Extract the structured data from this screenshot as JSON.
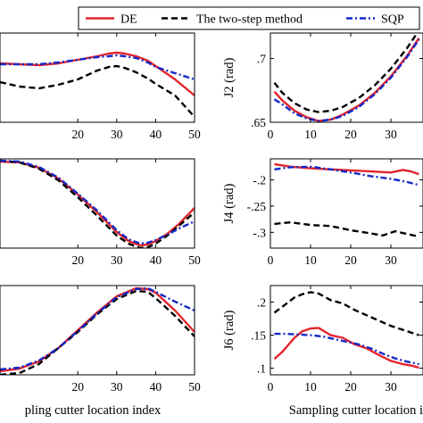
{
  "colors": {
    "DE": "#e3242b",
    "The two-step method": "#000000",
    "SQP": "#1428c8"
  },
  "legend": {
    "placement": "top-right",
    "items": [
      {
        "name": "DE",
        "style": "solid"
      },
      {
        "name": "The two-step method",
        "style": "dashed"
      },
      {
        "name": "SQP",
        "style": "dashdot"
      }
    ]
  },
  "chart_data": [
    {
      "id": "J1",
      "type": "line",
      "xlabel": "",
      "ylabel": "",
      "xlim": [
        0,
        50
      ],
      "ylim": [
        0.0,
        1.0
      ],
      "xticks": [
        20,
        30,
        40,
        50
      ],
      "yticks": [],
      "series": [
        {
          "name": "DE",
          "x": [
            0,
            5,
            10,
            15,
            20,
            25,
            28,
            30,
            32,
            35,
            38,
            40,
            45,
            50
          ],
          "y": [
            0.66,
            0.65,
            0.64,
            0.66,
            0.7,
            0.74,
            0.77,
            0.78,
            0.77,
            0.74,
            0.69,
            0.63,
            0.48,
            0.3
          ]
        },
        {
          "name": "The two-step method",
          "x": [
            0,
            5,
            10,
            15,
            20,
            25,
            28,
            30,
            32,
            35,
            38,
            40,
            45,
            50
          ],
          "y": [
            0.45,
            0.4,
            0.38,
            0.42,
            0.48,
            0.58,
            0.62,
            0.63,
            0.61,
            0.56,
            0.49,
            0.43,
            0.3,
            0.06
          ]
        },
        {
          "name": "SQP",
          "x": [
            0,
            5,
            10,
            15,
            20,
            25,
            28,
            30,
            32,
            35,
            38,
            40,
            45,
            50
          ],
          "y": [
            0.65,
            0.65,
            0.65,
            0.67,
            0.7,
            0.73,
            0.74,
            0.75,
            0.74,
            0.72,
            0.67,
            0.62,
            0.55,
            0.48
          ]
        }
      ]
    },
    {
      "id": "J2",
      "type": "line",
      "xlabel": "",
      "ylabel": "J2 (rad)",
      "xlim": [
        0,
        38
      ],
      "ylim": [
        0.65,
        0.72
      ],
      "xticks": [
        0,
        10,
        20,
        30
      ],
      "yticks": [
        0.65,
        0.7
      ],
      "series": [
        {
          "name": "DE",
          "x": [
            1,
            3,
            6,
            9,
            12,
            15,
            18,
            22,
            26,
            30,
            34,
            37
          ],
          "y": [
            0.674,
            0.667,
            0.659,
            0.654,
            0.651,
            0.652,
            0.656,
            0.663,
            0.673,
            0.686,
            0.702,
            0.716
          ]
        },
        {
          "name": "The two-step method",
          "x": [
            1,
            3,
            6,
            9,
            12,
            15,
            18,
            22,
            26,
            30,
            34,
            37
          ],
          "y": [
            0.681,
            0.673,
            0.665,
            0.66,
            0.658,
            0.659,
            0.662,
            0.669,
            0.679,
            0.692,
            0.708,
            0.722
          ]
        },
        {
          "name": "SQP",
          "x": [
            1,
            3,
            6,
            9,
            12,
            15,
            18,
            22,
            26,
            30,
            34,
            37
          ],
          "y": [
            0.668,
            0.664,
            0.657,
            0.653,
            0.651,
            0.652,
            0.655,
            0.662,
            0.672,
            0.685,
            0.701,
            0.715
          ]
        }
      ]
    },
    {
      "id": "J3",
      "type": "line",
      "xlabel": "",
      "ylabel": "",
      "xlim": [
        0,
        50
      ],
      "ylim": [
        0.0,
        1.0
      ],
      "xticks": [
        20,
        30,
        40,
        50
      ],
      "yticks": [],
      "series": [
        {
          "name": "DE",
          "x": [
            0,
            5,
            10,
            15,
            20,
            25,
            30,
            33,
            36,
            38,
            40,
            43,
            46,
            50
          ],
          "y": [
            0.97,
            0.96,
            0.9,
            0.78,
            0.6,
            0.4,
            0.18,
            0.08,
            0.03,
            0.04,
            0.08,
            0.16,
            0.27,
            0.45
          ]
        },
        {
          "name": "The two-step method",
          "x": [
            0,
            5,
            10,
            15,
            20,
            25,
            30,
            33,
            36,
            38,
            40,
            43,
            46,
            50
          ],
          "y": [
            0.98,
            0.96,
            0.89,
            0.76,
            0.57,
            0.36,
            0.14,
            0.05,
            0.0,
            0.01,
            0.05,
            0.14,
            0.25,
            0.4
          ]
        },
        {
          "name": "SQP",
          "x": [
            0,
            5,
            10,
            15,
            20,
            25,
            30,
            33,
            36,
            38,
            40,
            43,
            46,
            50
          ],
          "y": [
            0.98,
            0.97,
            0.91,
            0.79,
            0.61,
            0.42,
            0.2,
            0.1,
            0.05,
            0.06,
            0.09,
            0.15,
            0.22,
            0.3
          ]
        }
      ]
    },
    {
      "id": "J4",
      "type": "line",
      "xlabel": "",
      "ylabel": "J4 (rad)",
      "xlim": [
        0,
        38
      ],
      "ylim": [
        -0.33,
        -0.16
      ],
      "xticks": [
        0,
        10,
        20,
        30
      ],
      "yticks": [
        -0.2,
        -0.25,
        -0.3
      ],
      "series": [
        {
          "name": "DE",
          "x": [
            1,
            5,
            10,
            15,
            20,
            25,
            30,
            33,
            35,
            37
          ],
          "y": [
            -0.17,
            -0.175,
            -0.178,
            -0.18,
            -0.182,
            -0.184,
            -0.186,
            -0.181,
            -0.184,
            -0.189
          ]
        },
        {
          "name": "The two-step method",
          "x": [
            1,
            5,
            10,
            15,
            20,
            25,
            28,
            31,
            34,
            37
          ],
          "y": [
            -0.284,
            -0.281,
            -0.286,
            -0.288,
            -0.296,
            -0.302,
            -0.306,
            -0.298,
            -0.303,
            -0.308
          ]
        },
        {
          "name": "SQP",
          "x": [
            1,
            5,
            10,
            15,
            20,
            25,
            30,
            34,
            37
          ],
          "y": [
            -0.18,
            -0.176,
            -0.175,
            -0.18,
            -0.186,
            -0.193,
            -0.198,
            -0.204,
            -0.21
          ]
        }
      ]
    },
    {
      "id": "J5",
      "type": "line",
      "xlabel": "pling cutter location index",
      "ylabel": "",
      "xlim": [
        0,
        50
      ],
      "ylim": [
        0.0,
        1.0
      ],
      "xticks": [
        20,
        30,
        40,
        50
      ],
      "yticks": [],
      "series": [
        {
          "name": "DE",
          "x": [
            0,
            5,
            10,
            15,
            20,
            25,
            30,
            35,
            38,
            40,
            45,
            50
          ],
          "y": [
            0.04,
            0.07,
            0.15,
            0.3,
            0.5,
            0.7,
            0.88,
            0.97,
            0.96,
            0.92,
            0.72,
            0.48
          ]
        },
        {
          "name": "The two-step method",
          "x": [
            0,
            5,
            10,
            15,
            20,
            25,
            30,
            35,
            38,
            40,
            45,
            50
          ],
          "y": [
            0.0,
            0.02,
            0.12,
            0.3,
            0.48,
            0.68,
            0.85,
            0.94,
            0.93,
            0.86,
            0.66,
            0.43
          ]
        },
        {
          "name": "SQP",
          "x": [
            0,
            5,
            10,
            15,
            20,
            25,
            30,
            35,
            38,
            40,
            45,
            50
          ],
          "y": [
            0.06,
            0.08,
            0.16,
            0.3,
            0.49,
            0.69,
            0.87,
            0.96,
            0.97,
            0.93,
            0.82,
            0.72
          ]
        }
      ]
    },
    {
      "id": "J6",
      "type": "line",
      "xlabel": "Sampling cutter location index",
      "ylabel": "J6 (rad)",
      "xlim": [
        0,
        38
      ],
      "ylim": [
        0.09,
        0.225
      ],
      "xticks": [
        0,
        10,
        20,
        30
      ],
      "yticks": [
        0.1,
        0.15,
        0.2
      ],
      "series": [
        {
          "name": "DE",
          "x": [
            1,
            3,
            6,
            8,
            10,
            12,
            15,
            18,
            21,
            24,
            27,
            30,
            33,
            35,
            37
          ],
          "y": [
            0.114,
            0.125,
            0.146,
            0.156,
            0.16,
            0.161,
            0.15,
            0.146,
            0.136,
            0.13,
            0.12,
            0.111,
            0.106,
            0.104,
            0.101
          ]
        },
        {
          "name": "The two-step method",
          "x": [
            1,
            3,
            6,
            8,
            10,
            12,
            15,
            18,
            21,
            24,
            27,
            30,
            33,
            37
          ],
          "y": [
            0.184,
            0.193,
            0.207,
            0.212,
            0.215,
            0.213,
            0.203,
            0.198,
            0.188,
            0.18,
            0.172,
            0.164,
            0.158,
            0.15
          ]
        },
        {
          "name": "SQP",
          "x": [
            1,
            4,
            7,
            10,
            13,
            16,
            19,
            22,
            25,
            28,
            31,
            34,
            37
          ],
          "y": [
            0.152,
            0.152,
            0.151,
            0.15,
            0.148,
            0.144,
            0.14,
            0.136,
            0.13,
            0.122,
            0.115,
            0.11,
            0.106
          ]
        }
      ]
    }
  ]
}
